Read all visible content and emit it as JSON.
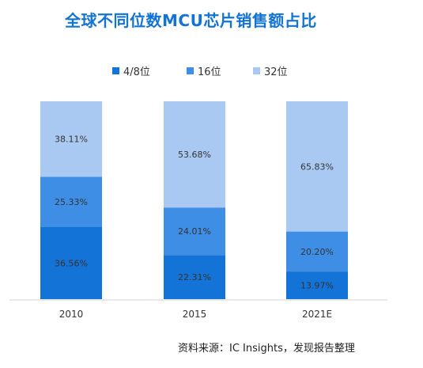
{
  "title": "全球不同位数MCU芯片销售额占比",
  "source": "资料来源：IC Insights，发现报告整理",
  "chart_data": {
    "type": "bar",
    "stacked": true,
    "categories": [
      "2010",
      "2015",
      "2021E"
    ],
    "series": [
      {
        "name": "4/8位",
        "color": "#1473d6",
        "values": [
          36.56,
          22.31,
          13.97
        ],
        "labels": [
          "36.56%",
          "22.31%",
          "13.97%"
        ]
      },
      {
        "name": "16位",
        "color": "#3f8ee6",
        "values": [
          25.33,
          24.01,
          20.2
        ],
        "labels": [
          "25.33%",
          "24.01%",
          "20.20%"
        ]
      },
      {
        "name": "32位",
        "color": "#a9c9f2",
        "values": [
          38.11,
          53.68,
          65.83
        ],
        "labels": [
          "38.11%",
          "53.68%",
          "65.83%"
        ]
      }
    ],
    "ylim": [
      0,
      100
    ],
    "legend_position": "top",
    "grid": false
  }
}
